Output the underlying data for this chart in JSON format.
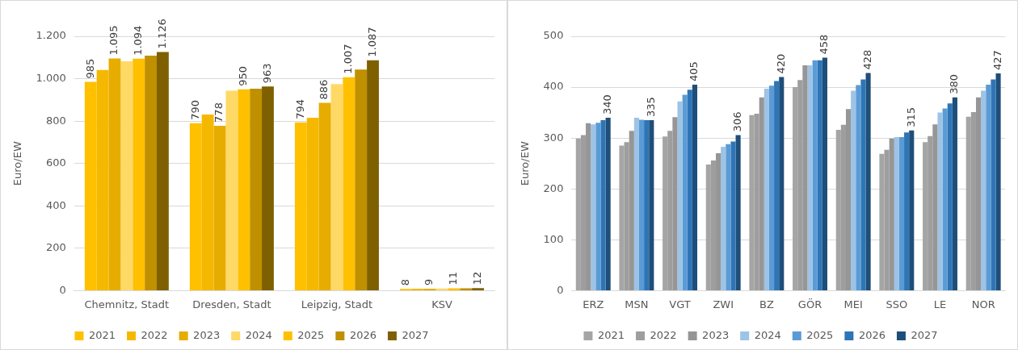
{
  "chart_data": [
    {
      "type": "bar",
      "ylabel": "Euro/EW",
      "categories": [
        "Chemnitz, Stadt",
        "Dresden, Stadt",
        "Leipzig, Stadt",
        "KSV"
      ],
      "series": [
        {
          "name": "2021",
          "color": "#ffc000",
          "values": [
            985,
            790,
            794,
            8
          ],
          "value_labels": [
            "985",
            "790",
            "794",
            "8"
          ]
        },
        {
          "name": "2022",
          "color": "#f5b800",
          "values": [
            1041,
            831,
            816,
            9
          ],
          "value_labels": [
            null,
            null,
            null,
            null
          ]
        },
        {
          "name": "2023",
          "color": "#e6ac00",
          "values": [
            1095,
            778,
            886,
            9
          ],
          "value_labels": [
            "1.095",
            "778",
            "886",
            "9"
          ]
        },
        {
          "name": "2024",
          "color": "#ffd966",
          "values": [
            1082,
            943,
            975,
            10
          ],
          "value_labels": [
            null,
            null,
            null,
            null
          ]
        },
        {
          "name": "2025",
          "color": "#ffc000",
          "values": [
            1094,
            950,
            1007,
            11
          ],
          "value_labels": [
            "1.094",
            "950",
            "1.007",
            "11"
          ]
        },
        {
          "name": "2026",
          "color": "#bf9000",
          "values": [
            1109,
            953,
            1043,
            11
          ],
          "value_labels": [
            null,
            null,
            null,
            null
          ]
        },
        {
          "name": "2027",
          "color": "#7f6000",
          "values": [
            1126,
            963,
            1087,
            12
          ],
          "value_labels": [
            "1.126",
            "963",
            "1.087",
            "12"
          ]
        }
      ],
      "ylim": [
        0,
        1200
      ],
      "yticks": [
        0,
        200,
        400,
        600,
        800,
        {
          "value": 1000,
          "label": "1.000"
        },
        {
          "value": 1200,
          "label": "1.200"
        }
      ],
      "grid": "y",
      "legend": "bottom"
    },
    {
      "type": "bar",
      "ylabel": "Euro/EW",
      "categories": [
        "ERZ",
        "MSN",
        "VGT",
        "ZWI",
        "BZ",
        "GÖR",
        "MEI",
        "SSO",
        "LE",
        "NOR"
      ],
      "series": [
        {
          "name": "2021",
          "color": "#a5a5a5",
          "values": [
            299,
            285,
            303,
            248,
            345,
            400,
            316,
            269,
            292,
            342
          ]
        },
        {
          "name": "2022",
          "color": "#9e9e9e",
          "values": [
            306,
            292,
            314,
            256,
            348,
            414,
            326,
            277,
            304,
            351
          ]
        },
        {
          "name": "2023",
          "color": "#969696",
          "values": [
            329,
            314,
            341,
            270,
            380,
            443,
            357,
            299,
            327,
            380
          ]
        },
        {
          "name": "2024",
          "color": "#9dc3e6",
          "values": [
            327,
            340,
            372,
            283,
            397,
            443,
            393,
            302,
            350,
            393
          ]
        },
        {
          "name": "2025",
          "color": "#5b9bd5",
          "values": [
            330,
            336,
            385,
            288,
            403,
            453,
            404,
            302,
            358,
            405
          ]
        },
        {
          "name": "2026",
          "color": "#2e75b6",
          "values": [
            335,
            335,
            395,
            293,
            412,
            453,
            415,
            311,
            368,
            415
          ]
        },
        {
          "name": "2027",
          "color": "#1f4e79",
          "values": [
            340,
            335,
            405,
            306,
            420,
            458,
            428,
            315,
            380,
            427
          ],
          "value_labels": [
            "340",
            "335",
            "405",
            "306",
            "420",
            "458",
            "428",
            "315",
            "380",
            "427"
          ]
        }
      ],
      "ylim": [
        0,
        500
      ],
      "yticks": [
        0,
        100,
        200,
        300,
        400,
        500
      ],
      "grid": "y",
      "legend": "bottom"
    }
  ]
}
